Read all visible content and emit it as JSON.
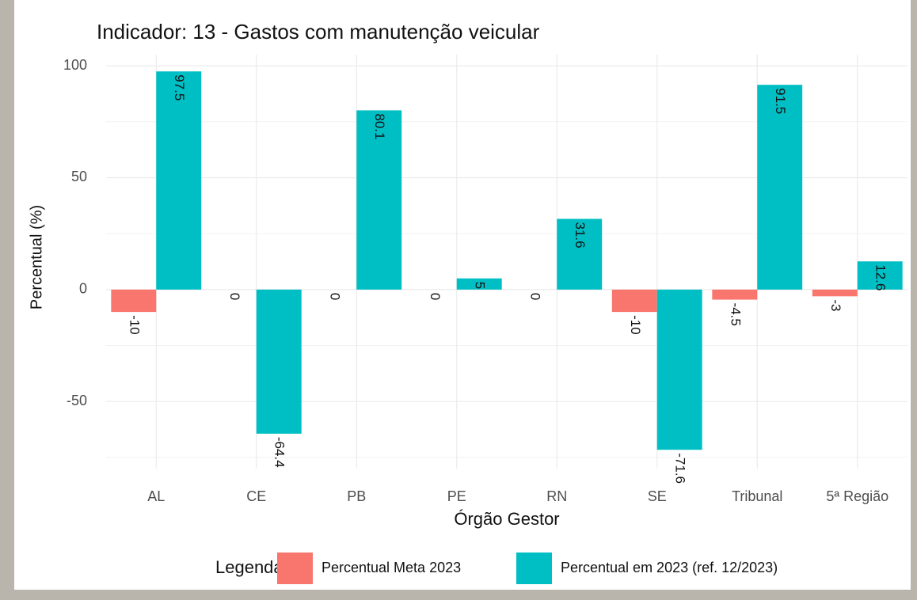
{
  "chart_data": {
    "type": "bar",
    "title": "Indicador: 13 - Gastos com manutenção veicular",
    "x_label": "Órgão Gestor",
    "y_label": "Percentual (%)",
    "legend_title": "Legenda",
    "legend_position": "bottom",
    "categories": [
      "AL",
      "CE",
      "PB",
      "PE",
      "RN",
      "SE",
      "Tribunal",
      "5ª Região"
    ],
    "series": [
      {
        "name": "Percentual Meta 2023",
        "color": "#F8766D",
        "values": [
          -10,
          0,
          0,
          0,
          0,
          -10,
          -4.5,
          -3
        ]
      },
      {
        "name": "Percentual em 2023 (ref. 12/2023)",
        "color": "#00BFC4",
        "values": [
          97.5,
          -64.4,
          80.1,
          5,
          31.6,
          -71.6,
          91.5,
          12.6
        ]
      }
    ],
    "ylim": [
      -80,
      105
    ],
    "yticks": [
      -50,
      0,
      50,
      100
    ],
    "yminorticks": [
      -75,
      -25,
      25,
      75
    ],
    "grid": true
  }
}
